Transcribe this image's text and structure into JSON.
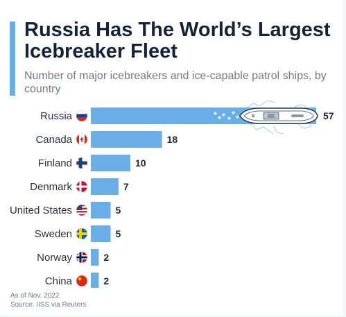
{
  "header": {
    "title": "Russia Has The World’s Largest Icebreaker Fleet",
    "subtitle": "Number of major icebreakers and ice-capable patrol ships, by country"
  },
  "footer": {
    "note": "As of Nov. 2022",
    "source": "Source: IISS via Reuters"
  },
  "colors": {
    "bar": "#6aaee8",
    "accent": "#6aaee8",
    "title": "#13233a"
  },
  "chart_data": {
    "type": "bar",
    "orientation": "horizontal",
    "title": "Russia Has The World’s Largest Icebreaker Fleet",
    "subtitle": "Number of major icebreakers and ice-capable patrol ships, by country",
    "categories": [
      "Russia",
      "Canada",
      "Finland",
      "Denmark",
      "United States",
      "Sweden",
      "Norway",
      "China"
    ],
    "values": [
      57,
      18,
      10,
      7,
      5,
      5,
      2,
      2
    ],
    "flags": [
      "russia-flag-icon",
      "canada-flag-icon",
      "finland-flag-icon",
      "denmark-flag-icon",
      "united-states-flag-icon",
      "sweden-flag-icon",
      "norway-flag-icon",
      "china-flag-icon"
    ],
    "xlim": [
      0,
      57
    ],
    "data_labels": true,
    "grid": false,
    "decoration": "icebreaker-ship-illustration at end of Russia bar"
  }
}
